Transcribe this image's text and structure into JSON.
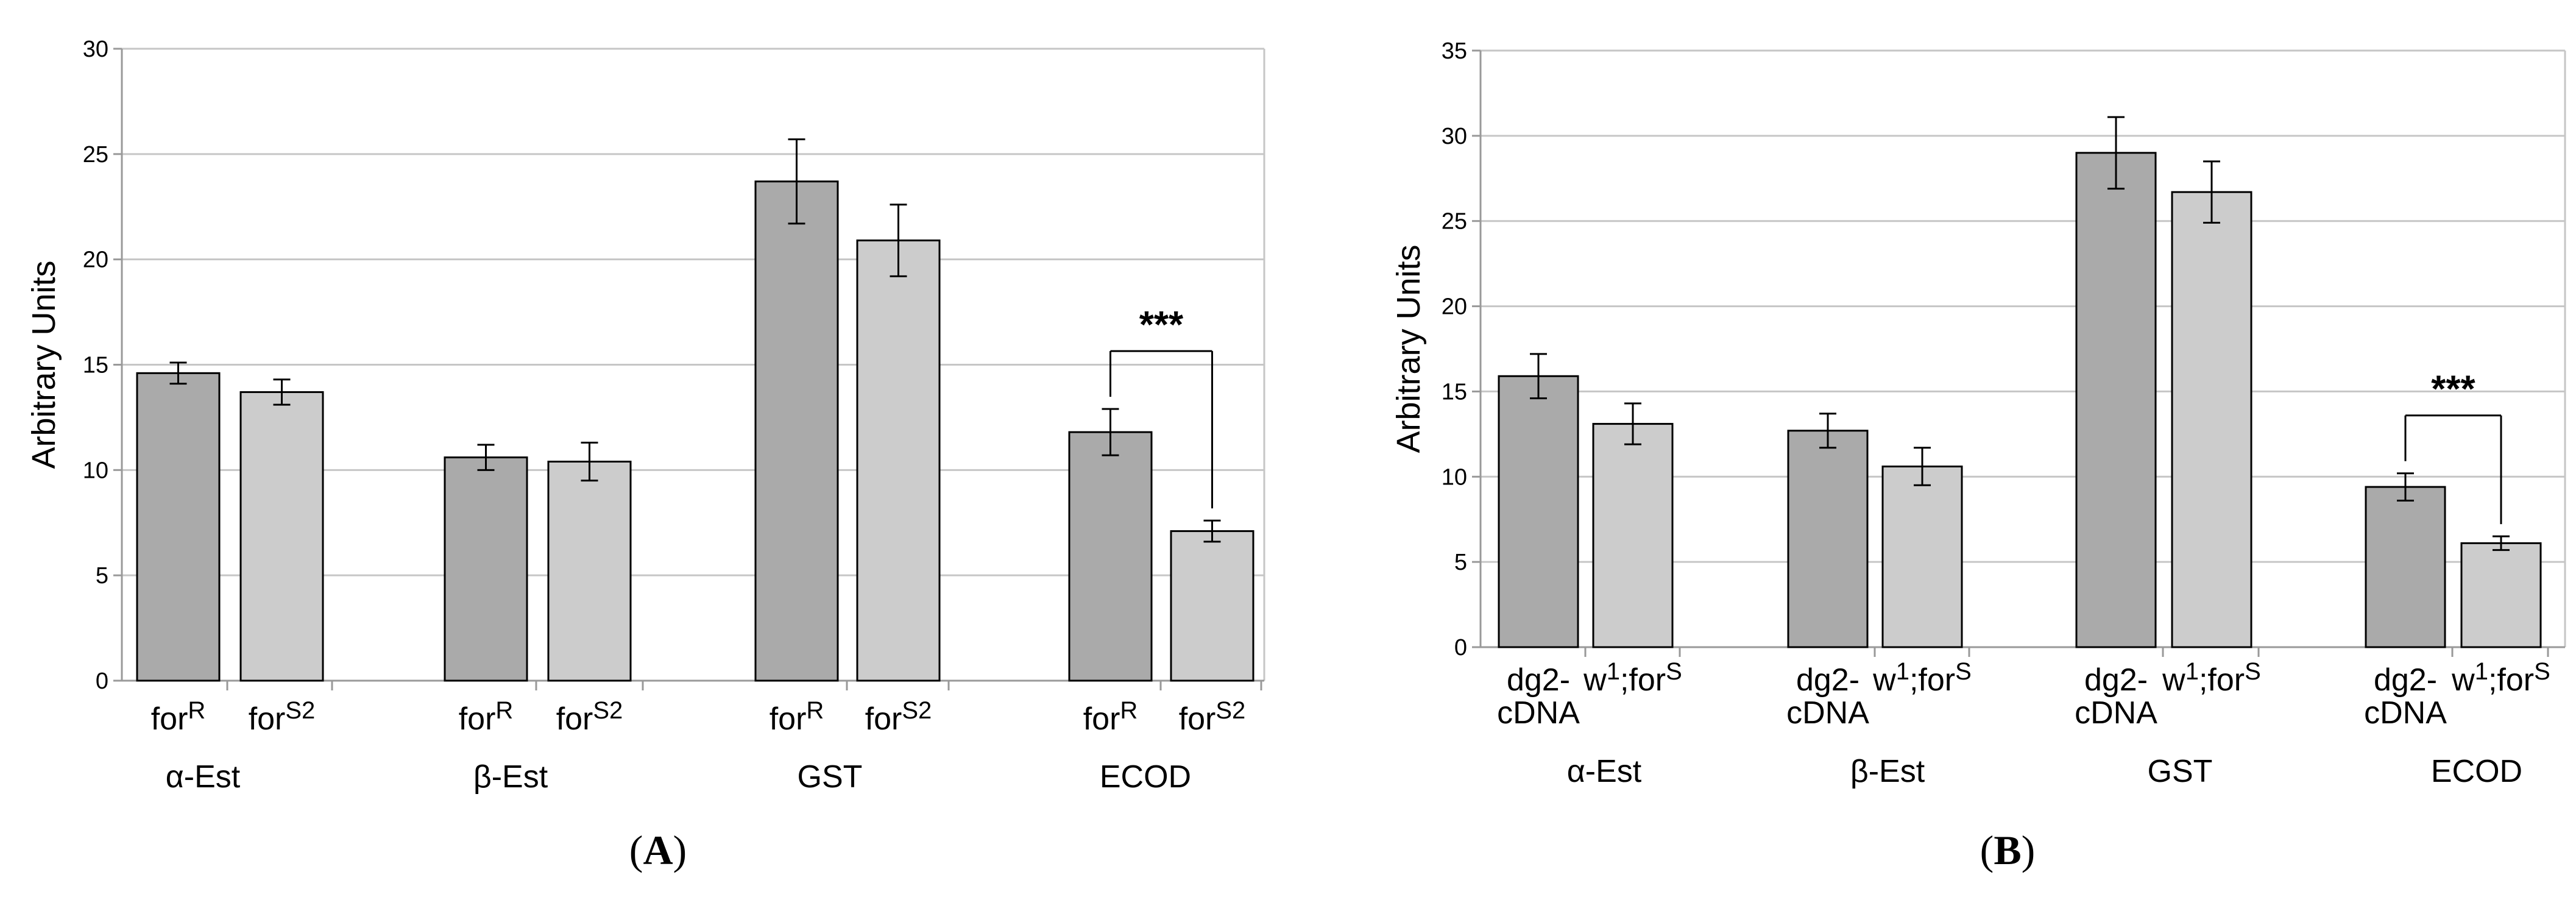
{
  "chart_data": [
    {
      "panel_label": "A",
      "type": "bar",
      "ylabel": "Arbitrary Units",
      "ylim": [
        0,
        30
      ],
      "yticks": [
        0,
        5,
        10,
        15,
        20,
        25,
        30
      ],
      "grid": true,
      "colors": {
        "dark": "#aaaaaa",
        "light": "#cccccc"
      },
      "groups": [
        {
          "name": "α-Est",
          "bars": [
            {
              "base": "for",
              "sup": "R",
              "value": 14.6,
              "err": 0.5,
              "shade": "dark"
            },
            {
              "base": "for",
              "sup": "S2",
              "value": 13.7,
              "err": 0.6,
              "shade": "light"
            }
          ]
        },
        {
          "name": "β-Est",
          "bars": [
            {
              "base": "for",
              "sup": "R",
              "value": 10.6,
              "err": 0.6,
              "shade": "dark"
            },
            {
              "base": "for",
              "sup": "S2",
              "value": 10.4,
              "err": 0.9,
              "shade": "light"
            }
          ]
        },
        {
          "name": "GST",
          "bars": [
            {
              "base": "for",
              "sup": "R",
              "value": 23.7,
              "err": 2.0,
              "shade": "dark"
            },
            {
              "base": "for",
              "sup": "S2",
              "value": 20.9,
              "err": 1.7,
              "shade": "light"
            }
          ]
        },
        {
          "name": "ECOD",
          "significance": "***",
          "bars": [
            {
              "base": "for",
              "sup": "R",
              "value": 11.8,
              "err": 1.1,
              "shade": "dark"
            },
            {
              "base": "for",
              "sup": "S2",
              "value": 7.1,
              "err": 0.5,
              "shade": "light"
            }
          ]
        }
      ]
    },
    {
      "panel_label": "B",
      "type": "bar",
      "ylabel": "Arbitrary Units",
      "ylim": [
        0,
        35
      ],
      "yticks": [
        0,
        5,
        10,
        15,
        20,
        25,
        30,
        35
      ],
      "grid": true,
      "colors": {
        "dark": "#aaaaaa",
        "light": "#cccccc"
      },
      "groups": [
        {
          "name": "α-Est",
          "bars": [
            {
              "base": "dg2-",
              "line2": "cDNA",
              "value": 15.9,
              "err": 1.3,
              "shade": "dark"
            },
            {
              "base": "w",
              "sup": "1",
              "mid": ";for",
              "sup2": "S",
              "value": 13.1,
              "err": 1.2,
              "shade": "light"
            }
          ]
        },
        {
          "name": "β-Est",
          "bars": [
            {
              "base": "dg2-",
              "line2": "cDNA",
              "value": 12.7,
              "err": 1.0,
              "shade": "dark"
            },
            {
              "base": "w",
              "sup": "1",
              "mid": ";for",
              "sup2": "S",
              "value": 10.6,
              "err": 1.1,
              "shade": "light"
            }
          ]
        },
        {
          "name": "GST",
          "bars": [
            {
              "base": "dg2-",
              "line2": "cDNA",
              "value": 29.0,
              "err": 2.1,
              "shade": "dark"
            },
            {
              "base": "w",
              "sup": "1",
              "mid": ";for",
              "sup2": "S",
              "value": 26.7,
              "err": 1.8,
              "shade": "light"
            }
          ]
        },
        {
          "name": "ECOD",
          "significance": "***",
          "bars": [
            {
              "base": "dg2-",
              "line2": "cDNA",
              "value": 9.4,
              "err": 0.8,
              "shade": "dark"
            },
            {
              "base": "w",
              "sup": "1",
              "mid": ";for",
              "sup2": "S",
              "value": 6.1,
              "err": 0.4,
              "shade": "light"
            }
          ]
        }
      ]
    }
  ]
}
